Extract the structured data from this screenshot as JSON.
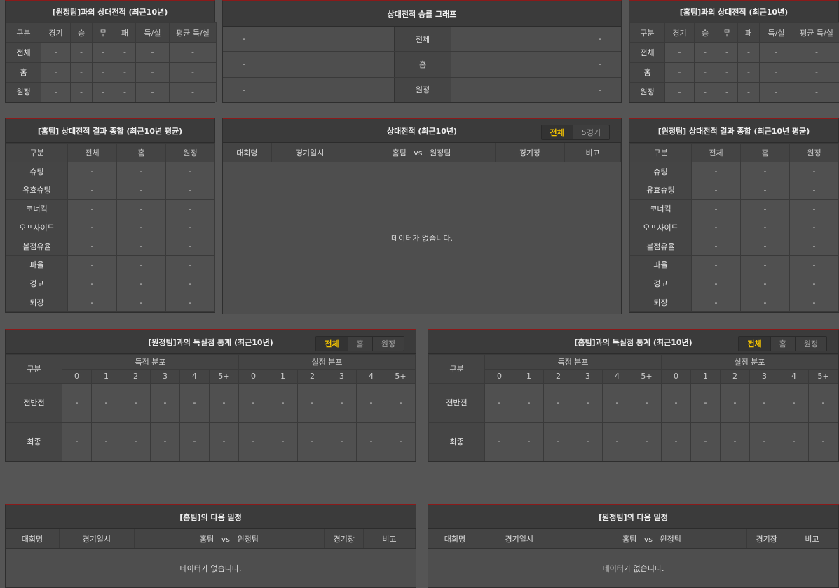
{
  "h2h_away": {
    "title": "[원정팀]과의 상대전적 (최근10년)",
    "cols": [
      "구분",
      "경기",
      "승",
      "무",
      "패",
      "득/실",
      "평균 득/실"
    ],
    "rows": [
      [
        "전체",
        "-",
        "-",
        "-",
        "-",
        "-",
        "-"
      ],
      [
        "홈",
        "-",
        "-",
        "-",
        "-",
        "-",
        "-"
      ],
      [
        "원정",
        "-",
        "-",
        "-",
        "-",
        "-",
        "-"
      ]
    ]
  },
  "graph": {
    "title": "상대전적 승률 그래프",
    "rows": [
      {
        "left": "-",
        "label": "전체",
        "right": "-"
      },
      {
        "left": "-",
        "label": "홈",
        "right": "-"
      },
      {
        "left": "-",
        "label": "원정",
        "right": "-"
      }
    ]
  },
  "h2h_home": {
    "title": "[홈팀]과의 상대전적 (최근10년)",
    "cols": [
      "구분",
      "경기",
      "승",
      "무",
      "패",
      "득/실",
      "평균 득/실"
    ],
    "rows": [
      [
        "전체",
        "-",
        "-",
        "-",
        "-",
        "-",
        "-"
      ],
      [
        "홈",
        "-",
        "-",
        "-",
        "-",
        "-",
        "-"
      ],
      [
        "원정",
        "-",
        "-",
        "-",
        "-",
        "-",
        "-"
      ]
    ]
  },
  "summary_home": {
    "title": "[홈팀] 상대전적 결과 종합 (최근10년 평균)",
    "cols": [
      "구분",
      "전체",
      "홈",
      "원정"
    ],
    "rows": [
      [
        "슈팅",
        "-",
        "-",
        "-"
      ],
      [
        "유효슈팅",
        "-",
        "-",
        "-"
      ],
      [
        "코너킥",
        "-",
        "-",
        "-"
      ],
      [
        "오프사이드",
        "-",
        "-",
        "-"
      ],
      [
        "볼점유율",
        "-",
        "-",
        "-"
      ],
      [
        "파울",
        "-",
        "-",
        "-"
      ],
      [
        "경고",
        "-",
        "-",
        "-"
      ],
      [
        "퇴장",
        "-",
        "-",
        "-"
      ]
    ]
  },
  "recent": {
    "title": "상대전적 (최근10년)",
    "toggle": [
      "전체",
      "5경기"
    ],
    "active": 0,
    "cols": [
      "대회명",
      "경기일시",
      "홈팀   vs   원정팀",
      "경기장",
      "비고"
    ],
    "empty": "데이터가 없습니다."
  },
  "summary_away": {
    "title": "[원정팀] 상대전적 결과 종합 (최근10년 평균)",
    "cols": [
      "구분",
      "전체",
      "홈",
      "원정"
    ],
    "rows": [
      [
        "슈팅",
        "-",
        "-",
        "-"
      ],
      [
        "유효슈팅",
        "-",
        "-",
        "-"
      ],
      [
        "코너킥",
        "-",
        "-",
        "-"
      ],
      [
        "오프사이드",
        "-",
        "-",
        "-"
      ],
      [
        "볼점유율",
        "-",
        "-",
        "-"
      ],
      [
        "파울",
        "-",
        "-",
        "-"
      ],
      [
        "경고",
        "-",
        "-",
        "-"
      ],
      [
        "퇴장",
        "-",
        "-",
        "-"
      ]
    ]
  },
  "goals_away": {
    "title": "[원정팀]과의 득실점 통계 (최근10년)",
    "toggle": [
      "전체",
      "홈",
      "원정"
    ],
    "active": 0,
    "group_header": "구분",
    "groups": [
      "득점 분포",
      "실점 분포"
    ],
    "buckets": [
      "0",
      "1",
      "2",
      "3",
      "4",
      "5+"
    ],
    "rows": [
      [
        "전반전",
        "-",
        "-",
        "-",
        "-",
        "-",
        "-",
        "-",
        "-",
        "-",
        "-",
        "-",
        "-"
      ],
      [
        "최종",
        "-",
        "-",
        "-",
        "-",
        "-",
        "-",
        "-",
        "-",
        "-",
        "-",
        "-",
        "-"
      ]
    ]
  },
  "goals_home": {
    "title": "[홈팀]과의 득실점 통계 (최근10년)",
    "toggle": [
      "전체",
      "홈",
      "원정"
    ],
    "active": 0,
    "group_header": "구분",
    "groups": [
      "득점 분포",
      "실점 분포"
    ],
    "buckets": [
      "0",
      "1",
      "2",
      "3",
      "4",
      "5+"
    ],
    "rows": [
      [
        "전반전",
        "-",
        "-",
        "-",
        "-",
        "-",
        "-",
        "-",
        "-",
        "-",
        "-",
        "-",
        "-"
      ],
      [
        "최종",
        "-",
        "-",
        "-",
        "-",
        "-",
        "-",
        "-",
        "-",
        "-",
        "-",
        "-",
        "-"
      ]
    ]
  },
  "next_home": {
    "title": "[홈팀]의 다음 일정",
    "cols": [
      "대회명",
      "경기일시",
      "홈팀   vs   원정팀",
      "경기장",
      "비고"
    ],
    "empty": "데이터가 없습니다."
  },
  "next_away": {
    "title": "[원정팀]의 다음 일정",
    "cols": [
      "대회명",
      "경기일시",
      "홈팀   vs   원정팀",
      "경기장",
      "비고"
    ],
    "empty": "데이터가 없습니다."
  }
}
